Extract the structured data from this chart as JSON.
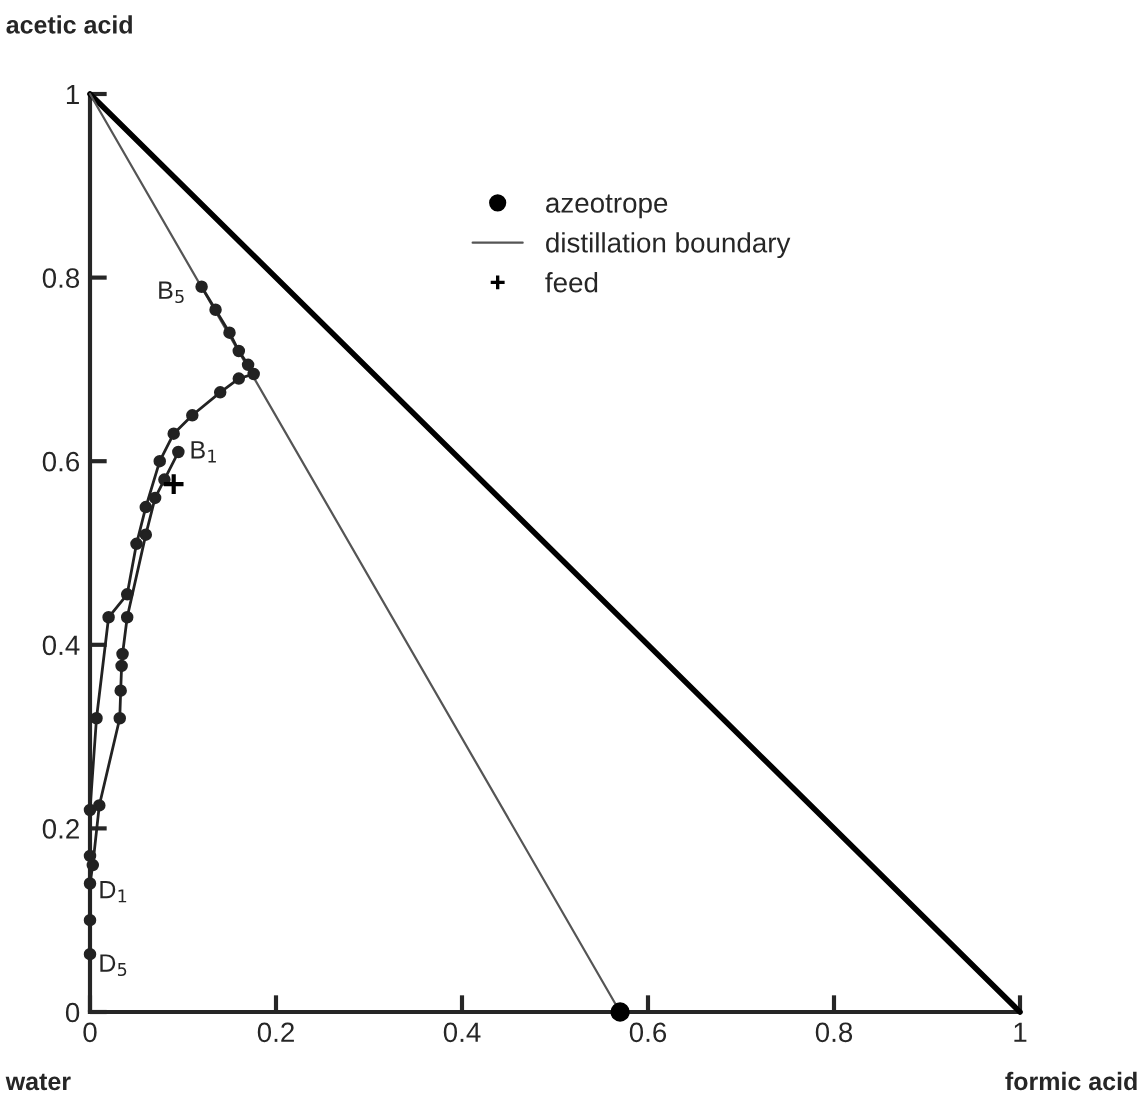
{
  "chart_data": {
    "type": "line",
    "xlim": [
      0,
      1
    ],
    "ylim": [
      0,
      1
    ],
    "xticks": [
      0,
      0.2,
      0.4,
      0.6,
      0.8,
      1
    ],
    "yticks": [
      0,
      0.2,
      0.4,
      0.6,
      0.8,
      1
    ],
    "legend": "top right",
    "grid": false,
    "series": [
      {
        "color": "#000000",
        "x": [
          0,
          1
        ],
        "values": [
          1,
          0
        ],
        "marker": "none"
      },
      {
        "type": "scatter",
        "name": "azeotrope",
        "color": "#000000",
        "marker": "circle",
        "x": [
          0.57
        ],
        "values": [
          0
        ]
      },
      {
        "name": "distillation boundary",
        "color": "#555555",
        "x": [
          0,
          0.57
        ],
        "values": [
          1,
          0
        ],
        "marker": "none"
      },
      {
        "color": "#222222",
        "marker": "circle",
        "x": [
          0.12,
          0.135,
          0.15,
          0.16,
          0.17,
          0.176,
          0.16,
          0.14,
          0.11,
          0.09,
          0.075,
          0.06,
          0.05,
          0.04,
          0.02,
          0.007,
          0,
          0,
          0,
          0
        ],
        "values": [
          0.79,
          0.765,
          0.74,
          0.72,
          0.705,
          0.695,
          0.69,
          0.675,
          0.65,
          0.63,
          0.6,
          0.55,
          0.51,
          0.455,
          0.43,
          0.32,
          0.22,
          0.17,
          0.1,
          0.063
        ]
      },
      {
        "color": "#222222",
        "marker": "circle",
        "x": [
          0.095,
          0.08,
          0.07,
          0.06,
          0.04,
          0.035,
          0.034,
          0.033,
          0.032,
          0.01,
          0.003,
          0
        ],
        "values": [
          0.61,
          0.58,
          0.56,
          0.52,
          0.43,
          0.39,
          0.377,
          0.35,
          0.32,
          0.225,
          0.16,
          0.14
        ]
      },
      {
        "type": "scatter",
        "name": "feed",
        "color": "#000000",
        "marker": "cross",
        "x": [
          0.09
        ],
        "values": [
          0.575
        ]
      }
    ],
    "annotations": [
      "acetic acid",
      "water",
      "formic acid",
      {
        "text": "B$_{5}$",
        "x": 0.12,
        "y": 0.79
      },
      {
        "text": "B$_{1}$",
        "x": 0.095,
        "y": 0.61
      },
      {
        "text": "D$_{1}$",
        "x": 0,
        "y": 0.14
      },
      {
        "text": "D$_{5}$",
        "x": 0,
        "y": 0.063
      }
    ]
  }
}
